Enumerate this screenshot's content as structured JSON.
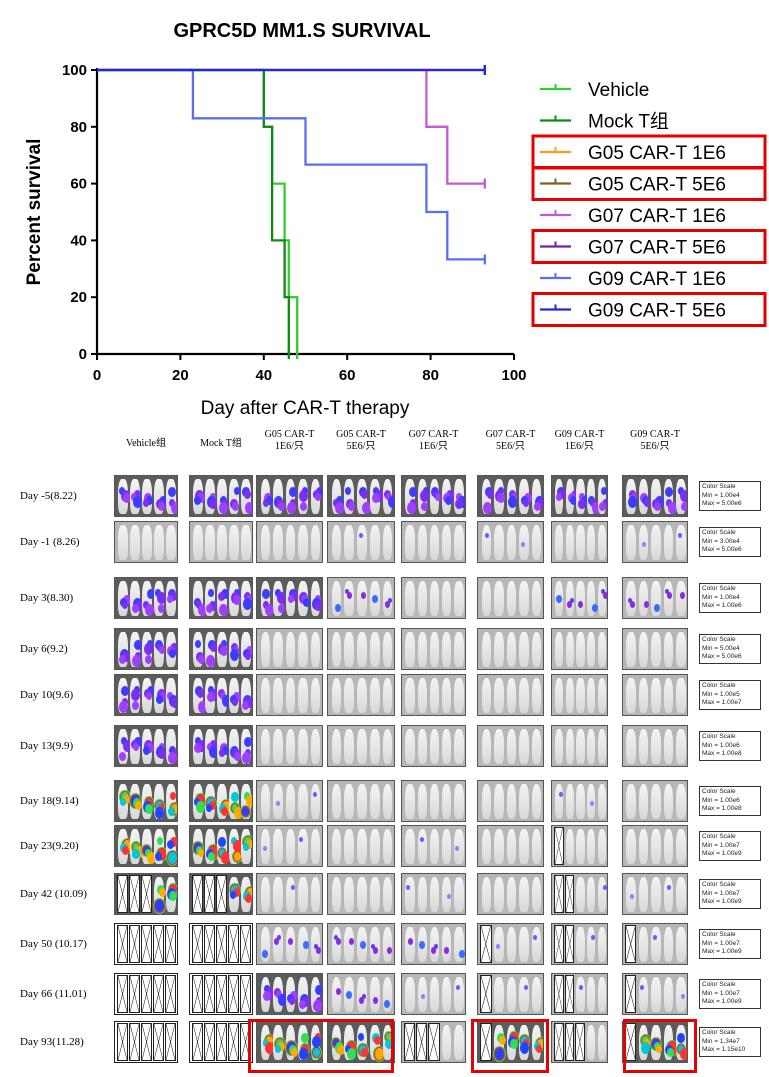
{
  "chart_data": {
    "type": "line",
    "step": true,
    "title": "GPRC5D MM1.S SURVIVAL",
    "xlabel": "Day after CAR-T therapy",
    "ylabel": "Percent survival",
    "xlim": [
      0,
      100
    ],
    "ylim": [
      0,
      100
    ],
    "xticks": [
      "0",
      "20",
      "40",
      "60",
      "80",
      "100"
    ],
    "yticks": [
      "0",
      "20",
      "40",
      "60",
      "80",
      "100"
    ],
    "grid": false,
    "legend_position": "right",
    "series": [
      {
        "name": "Vehicle",
        "color": "#33cc33",
        "highlighted": false,
        "points": [
          [
            0,
            100
          ],
          [
            40,
            100
          ],
          [
            40,
            80
          ],
          [
            42,
            80
          ],
          [
            42,
            60
          ],
          [
            45,
            60
          ],
          [
            45,
            40
          ],
          [
            46,
            40
          ],
          [
            46,
            20
          ],
          [
            48,
            20
          ],
          [
            48,
            0
          ]
        ]
      },
      {
        "name": "Mock T组",
        "color": "#118a11",
        "highlighted": false,
        "points": [
          [
            0,
            100
          ],
          [
            40,
            100
          ],
          [
            40,
            80
          ],
          [
            42,
            80
          ],
          [
            42,
            40
          ],
          [
            45,
            40
          ],
          [
            45,
            20
          ],
          [
            46,
            20
          ],
          [
            46,
            0
          ]
        ]
      },
      {
        "name": "G05 CAR-T 1E6",
        "color": "#f5a020",
        "highlighted": true,
        "points": []
      },
      {
        "name": "G05 CAR-T 5E6",
        "color": "#8b5a1e",
        "highlighted": true,
        "points": []
      },
      {
        "name": "G07 CAR-T 1E6",
        "color": "#c25ad6",
        "highlighted": false,
        "points": [
          [
            0,
            100
          ],
          [
            79,
            100
          ],
          [
            79,
            80
          ],
          [
            84,
            80
          ],
          [
            84,
            60
          ],
          [
            93,
            60
          ]
        ]
      },
      {
        "name": "G07 CAR-T 5E6",
        "color": "#7a1fa0",
        "highlighted": true,
        "points": [
          [
            0,
            100
          ],
          [
            93,
            100
          ]
        ]
      },
      {
        "name": "G09 CAR-T 1E6",
        "color": "#5a6ef2",
        "highlighted": false,
        "points": [
          [
            0,
            100
          ],
          [
            23,
            100
          ],
          [
            23,
            83
          ],
          [
            50,
            83
          ],
          [
            50,
            66.7
          ],
          [
            79,
            66.7
          ],
          [
            79,
            50
          ],
          [
            84,
            50
          ],
          [
            84,
            33.3
          ],
          [
            93,
            33.3
          ]
        ]
      },
      {
        "name": "G09 CAR-T 5E6",
        "color": "#1e2ad8",
        "highlighted": true,
        "points": [
          [
            0,
            100
          ],
          [
            93,
            100
          ]
        ]
      }
    ]
  },
  "imaging": {
    "groups": [
      "Vehicle组",
      "Mock T组",
      "G05 CAR-T\n1E6/只",
      "G05 CAR-T\n5E6/只",
      "G07 CAR-T\n1E6/只",
      "G07 CAR-T\n5E6/只",
      "G09 CAR-T\n1E6/只",
      "G09 CAR-T\n5E6/只"
    ],
    "rows": [
      {
        "day": "Day  -5(8.22)",
        "scale": [
          "Color Scale",
          "Min = 1.00e4",
          "Max = 5.00e6"
        ],
        "bio": [
          3,
          3,
          3,
          3,
          3,
          3,
          3,
          3
        ],
        "dead": [
          0,
          0,
          0,
          0,
          0,
          0,
          0,
          0
        ]
      },
      {
        "day": "Day  -1 (8.26)",
        "scale": [
          "Color Scale",
          "Min = 3.00e4",
          "Max = 5.00e6"
        ],
        "bio": [
          0,
          0,
          0,
          1,
          0,
          1,
          0,
          1
        ],
        "dead": [
          0,
          0,
          0,
          0,
          0,
          0,
          0,
          0
        ]
      },
      {
        "day": "Day  3(8.30)",
        "scale": [
          "Color Scale",
          "Min = 1.00e4",
          "Max = 1.00e6"
        ],
        "bio": [
          3,
          3,
          3,
          2,
          0,
          0,
          2,
          2
        ],
        "dead": [
          0,
          0,
          0,
          0,
          0,
          0,
          0,
          0
        ]
      },
      {
        "day": "Day  6(9.2)",
        "scale": [
          "Color Scale",
          "Min = 5.00e4",
          "Max = 5.00e6"
        ],
        "bio": [
          3,
          3,
          0,
          0,
          0,
          0,
          0,
          0
        ],
        "dead": [
          0,
          0,
          0,
          0,
          0,
          0,
          0,
          0
        ]
      },
      {
        "day": "Day  10(9.6)",
        "scale": [
          "Color Scale",
          "Min = 1.00e5",
          "Max = 1.00e7"
        ],
        "bio": [
          3,
          3,
          0,
          0,
          0,
          0,
          0,
          0
        ],
        "dead": [
          0,
          0,
          0,
          0,
          0,
          0,
          0,
          0
        ]
      },
      {
        "day": "Day  13(9.9)",
        "scale": [
          "Color Scale",
          "Min = 1.00e6",
          "Max = 1.00e8"
        ],
        "bio": [
          3,
          3,
          0,
          0,
          0,
          0,
          0,
          0
        ],
        "dead": [
          0,
          0,
          0,
          0,
          0,
          0,
          0,
          0
        ]
      },
      {
        "day": "Day  18(9.14)",
        "scale": [
          "Color Scale",
          "Min = 1.00e6",
          "Max = 1.00e8"
        ],
        "bio": [
          4,
          4,
          1,
          0,
          0,
          0,
          1,
          0
        ],
        "dead": [
          0,
          0,
          0,
          0,
          0,
          0,
          0,
          0
        ]
      },
      {
        "day": "Day  23(9.20)",
        "scale": [
          "Color Scale",
          "Min = 1.00e7",
          "Max = 1.00e9"
        ],
        "bio": [
          4,
          4,
          1,
          0,
          1,
          0,
          0,
          0
        ],
        "dead": [
          0,
          0,
          0,
          0,
          0,
          0,
          1,
          0
        ]
      },
      {
        "day": "Day  42  (10.09)",
        "scale": [
          "Color Scale",
          "Min = 1.00e7",
          "Max = 1.00e9"
        ],
        "bio": [
          4,
          4,
          1,
          0,
          1,
          0,
          1,
          1
        ],
        "dead": [
          3,
          3,
          0,
          0,
          0,
          0,
          2,
          0
        ]
      },
      {
        "day": "Day  50  (10.17)",
        "scale": [
          "Color Scale",
          "Min = 1.00e7",
          "Max = 1.00e9"
        ],
        "bio": [
          0,
          0,
          2,
          2,
          2,
          1,
          1,
          1
        ],
        "dead": [
          5,
          5,
          0,
          0,
          0,
          1,
          2,
          1
        ]
      },
      {
        "day": "Day  66  (11.01)",
        "scale": [
          "Color Scale",
          "Min = 1.00e7",
          "Max = 1.00e9"
        ],
        "bio": [
          0,
          0,
          3,
          2,
          1,
          1,
          1,
          1
        ],
        "dead": [
          5,
          5,
          0,
          0,
          0,
          1,
          2,
          1
        ]
      },
      {
        "day": "Day  93(11.28)",
        "scale": [
          "Color Scale",
          "Min = 1.34e7",
          "Max = 1.15e10"
        ],
        "bio": [
          0,
          0,
          4,
          4,
          0,
          4,
          0,
          4
        ],
        "dead": [
          5,
          5,
          0,
          0,
          3,
          1,
          3,
          1
        ]
      }
    ],
    "highlighted_panels": [
      "G05 CAR-T 1E6 + G05 CAR-T 5E6 at Day 93",
      "G07 CAR-T 5E6 at Day 93",
      "G09 CAR-T 5E6 at Day 93"
    ]
  }
}
